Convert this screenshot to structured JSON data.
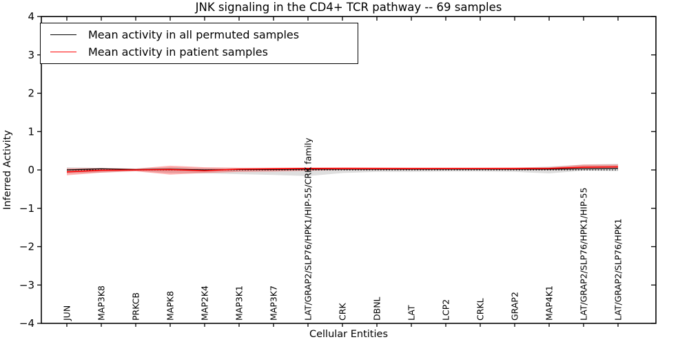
{
  "chart_data": {
    "type": "line",
    "title": "JNK signaling in the CD4+ TCR pathway -- 69 samples",
    "xlabel": "Cellular Entities",
    "ylabel": "Inferred Activity",
    "ylim": [
      -4,
      4
    ],
    "yticks": [
      4,
      3,
      2,
      1,
      0,
      -1,
      -2,
      -3,
      -4
    ],
    "ytick_labels": [
      "4",
      "3",
      "2",
      "1",
      "0",
      "−1",
      "−2",
      "−3",
      "−4"
    ],
    "grid": false,
    "legend_position": "upper left",
    "zero_line": {
      "y": 0,
      "style": "dotted",
      "color": "#000000"
    },
    "categories": [
      "JUN",
      "MAP3K8",
      "PRKCB",
      "MAPK8",
      "MAP2K4",
      "MAP3K1",
      "MAP3K7",
      "LAT/GRAP2/SLP76/HPK1/HIP-55/CRK family",
      "CRK",
      "DBNL",
      "LAT",
      "LCP2",
      "CRKL",
      "GRAP2",
      "MAP4K1",
      "LAT/GRAP2/SLP76/HPK1/HIP-55",
      "LAT/GRAP2/SLP76/HPK1"
    ],
    "series": [
      {
        "name": "Mean activity in all permuted samples",
        "color": "#000000",
        "band_color": "rgba(0,0,0,0.13)",
        "values": [
          0.0,
          0.03,
          0.01,
          0.02,
          0.0,
          0.01,
          0.01,
          0.02,
          0.02,
          0.02,
          0.02,
          0.02,
          0.02,
          0.02,
          0.02,
          0.03,
          0.04
        ],
        "band_upper": [
          0.07,
          0.05,
          0.03,
          0.07,
          0.05,
          0.05,
          0.05,
          0.04,
          0.05,
          0.04,
          0.04,
          0.04,
          0.04,
          0.05,
          0.09,
          0.14,
          0.16
        ],
        "band_lower": [
          -0.09,
          -0.07,
          -0.03,
          -0.08,
          -0.09,
          -0.11,
          -0.13,
          -0.16,
          -0.08,
          -0.05,
          -0.05,
          -0.04,
          -0.04,
          -0.05,
          -0.09,
          -0.02,
          -0.03
        ]
      },
      {
        "name": "Mean activity in patient samples",
        "color": "#ff0000",
        "band_color": "rgba(255,0,0,0.30)",
        "values": [
          -0.05,
          -0.01,
          0.0,
          0.01,
          -0.02,
          0.02,
          0.03,
          0.04,
          0.035,
          0.035,
          0.035,
          0.035,
          0.035,
          0.035,
          0.04,
          0.07,
          0.08
        ],
        "band_upper": [
          0.04,
          0.05,
          0.035,
          0.11,
          0.07,
          0.055,
          0.055,
          0.06,
          0.07,
          0.065,
          0.06,
          0.06,
          0.06,
          0.065,
          0.07,
          0.14,
          0.14
        ],
        "band_lower": [
          -0.14,
          -0.07,
          -0.035,
          -0.12,
          -0.08,
          -0.05,
          -0.04,
          -0.02,
          0.0,
          0.0,
          0.0,
          0.01,
          0.01,
          0.0,
          0.0,
          0.02,
          0.03
        ]
      }
    ]
  }
}
